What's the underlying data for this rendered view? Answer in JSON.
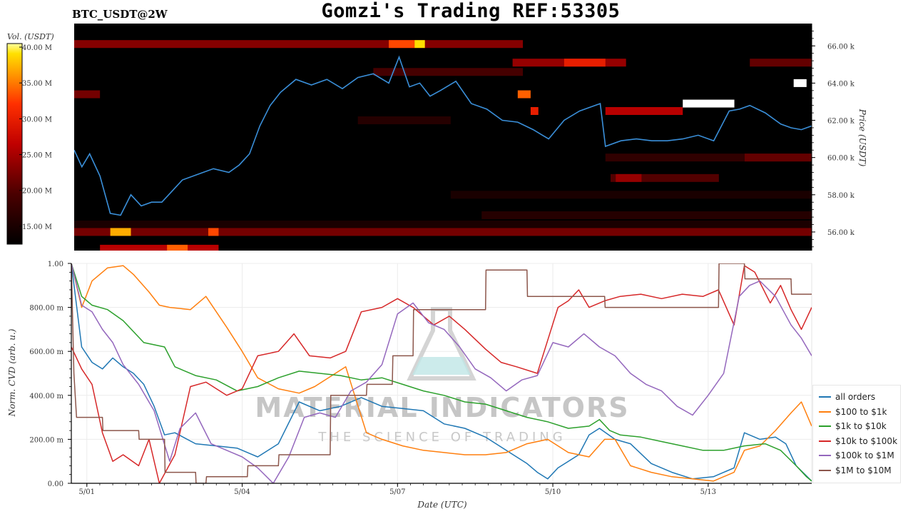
{
  "header": {
    "title": "Gomzi's Trading REF:53305",
    "symbol": "BTC_USDT@2W"
  },
  "watermark": {
    "brand": "MATERIAL INDICATORS",
    "tagline": "THE SCIENCE OF TRADING"
  },
  "colors": {
    "all_orders": "#1f77b4",
    "usd100_1k": "#ff7f0e",
    "usd1k_10k": "#2ca02c",
    "usd10k_100k": "#d62728",
    "usd100k_1m": "#9467bd",
    "usd1m_10m": "#8c564b",
    "price_line": "#3a8fd9",
    "heatmap_bg": "#000000"
  },
  "chart_data": [
    {
      "type": "heatmap",
      "colorbar": {
        "label": "Vol. (USDT)",
        "ticks": [
          "40.00 M",
          "35.00 M",
          "30.00 M",
          "25.00 M",
          "20.00 M",
          "15.00 M"
        ],
        "range": [
          12.5,
          40.5
        ]
      },
      "ylabel": "Price (USDT)",
      "ytick_labels": [
        "66.00 k",
        "64.00 k",
        "62.00 k",
        "60.00 k",
        "58.00 k",
        "56.00 k"
      ],
      "ylim": [
        55,
        67.2
      ],
      "xlim": [
        0,
        14.3
      ],
      "price_series": {
        "x": [
          0,
          0.15,
          0.3,
          0.5,
          0.7,
          0.9,
          1.1,
          1.3,
          1.5,
          1.7,
          1.9,
          2.1,
          2.4,
          2.7,
          3.0,
          3.2,
          3.4,
          3.6,
          3.8,
          4.0,
          4.3,
          4.6,
          4.9,
          5.2,
          5.5,
          5.8,
          6.1,
          6.3,
          6.5,
          6.7,
          6.9,
          7.1,
          7.4,
          7.7,
          8.0,
          8.3,
          8.6,
          8.9,
          9.2,
          9.5,
          9.8,
          10.0,
          10.2,
          10.3,
          10.6,
          10.9,
          11.2,
          11.5,
          11.8,
          12.1,
          12.4,
          12.7,
          12.9,
          13.1,
          13.4,
          13.7,
          13.9,
          14.1,
          14.3
        ],
        "y": [
          60.4,
          59.5,
          60.2,
          59.0,
          57.0,
          56.9,
          58.0,
          57.4,
          57.6,
          57.6,
          58.2,
          58.8,
          59.1,
          59.4,
          59.2,
          59.6,
          60.2,
          61.7,
          62.8,
          63.5,
          64.2,
          63.9,
          64.2,
          63.7,
          64.3,
          64.5,
          64.0,
          65.4,
          63.8,
          64.0,
          63.3,
          63.6,
          64.1,
          62.9,
          62.6,
          62.0,
          61.9,
          61.5,
          61.0,
          62.0,
          62.5,
          62.7,
          62.9,
          60.6,
          60.9,
          61.0,
          60.9,
          60.9,
          61.0,
          61.2,
          60.9,
          62.5,
          62.6,
          62.8,
          62.4,
          61.8,
          61.6,
          61.5,
          61.7
        ]
      },
      "bands": [
        {
          "price": 66.1,
          "x0": 0.0,
          "x1": 8.7,
          "vol": 23
        },
        {
          "price": 66.1,
          "x0": 6.1,
          "x1": 6.6,
          "vol": 33
        },
        {
          "price": 66.1,
          "x0": 6.6,
          "x1": 6.8,
          "vol": 39
        },
        {
          "price": 65.1,
          "x0": 8.5,
          "x1": 10.7,
          "vol": 24
        },
        {
          "price": 65.1,
          "x0": 9.5,
          "x1": 10.3,
          "vol": 30
        },
        {
          "price": 65.1,
          "x0": 13.1,
          "x1": 14.3,
          "vol": 21
        },
        {
          "price": 64.6,
          "x0": 5.8,
          "x1": 8.7,
          "vol": 19
        },
        {
          "price": 63.4,
          "x0": 0.0,
          "x1": 0.5,
          "vol": 22
        },
        {
          "price": 63.4,
          "x0": 8.6,
          "x1": 8.85,
          "vol": 34
        },
        {
          "price": 62.5,
          "x0": 8.85,
          "x1": 9.0,
          "vol": 30
        },
        {
          "price": 62.5,
          "x0": 10.3,
          "x1": 11.8,
          "vol": 26
        },
        {
          "price": 62.9,
          "x0": 11.8,
          "x1": 12.8,
          "vol": 42
        },
        {
          "price": 64.0,
          "x0": 13.95,
          "x1": 14.2,
          "vol": 42
        },
        {
          "price": 62.0,
          "x0": 5.5,
          "x1": 7.3,
          "vol": 16
        },
        {
          "price": 60.0,
          "x0": 10.3,
          "x1": 14.3,
          "vol": 17
        },
        {
          "price": 60.0,
          "x0": 13.0,
          "x1": 14.3,
          "vol": 21
        },
        {
          "price": 58.9,
          "x0": 10.4,
          "x1": 12.5,
          "vol": 20
        },
        {
          "price": 58.9,
          "x0": 10.5,
          "x1": 11.0,
          "vol": 24
        },
        {
          "price": 58.0,
          "x0": 7.3,
          "x1": 14.3,
          "vol": 15
        },
        {
          "price": 56.9,
          "x0": 7.9,
          "x1": 14.3,
          "vol": 16
        },
        {
          "price": 56.4,
          "x0": 0.0,
          "x1": 14.3,
          "vol": 15
        },
        {
          "price": 56.0,
          "x0": 0.0,
          "x1": 14.3,
          "vol": 22
        },
        {
          "price": 56.0,
          "x0": 0.7,
          "x1": 1.1,
          "vol": 37
        },
        {
          "price": 56.0,
          "x0": 2.6,
          "x1": 2.8,
          "vol": 33
        },
        {
          "price": 55.1,
          "x0": 0.5,
          "x1": 2.8,
          "vol": 26
        },
        {
          "price": 55.1,
          "x0": 1.8,
          "x1": 2.2,
          "vol": 34
        }
      ]
    },
    {
      "type": "line",
      "xlabel": "Date (UTC)",
      "ylabel": "Norm. CVD (arb. u.)",
      "x_tick_labels": [
        "5/01",
        "5/04",
        "5/07",
        "5/10",
        "5/13"
      ],
      "x_tick_positions": [
        0.3,
        3.3,
        6.3,
        9.3,
        12.3
      ],
      "xlim": [
        0,
        14.3
      ],
      "y_tick_labels": [
        "1.00",
        "800.00 m",
        "600.00 m",
        "400.00 m",
        "200.00 m",
        "0.00"
      ],
      "ylim": [
        0,
        1
      ],
      "legend_position": "bottom-right",
      "series": [
        {
          "name": "all orders",
          "x": [
            0,
            0.2,
            0.4,
            0.6,
            0.8,
            1.0,
            1.2,
            1.4,
            1.6,
            1.8,
            2.0,
            2.4,
            2.8,
            3.2,
            3.6,
            4.0,
            4.4,
            4.8,
            5.2,
            5.6,
            6.0,
            6.4,
            6.8,
            7.2,
            7.6,
            8.0,
            8.4,
            8.8,
            9.0,
            9.2,
            9.4,
            9.6,
            9.8,
            10.0,
            10.2,
            10.5,
            10.8,
            11.2,
            11.6,
            12.0,
            12.4,
            12.8,
            13.0,
            13.3,
            13.6,
            13.8,
            14.0,
            14.3
          ],
          "y": [
            1.0,
            0.62,
            0.55,
            0.52,
            0.57,
            0.53,
            0.5,
            0.45,
            0.35,
            0.22,
            0.23,
            0.18,
            0.17,
            0.16,
            0.12,
            0.18,
            0.37,
            0.33,
            0.35,
            0.39,
            0.35,
            0.34,
            0.33,
            0.27,
            0.25,
            0.21,
            0.15,
            0.09,
            0.05,
            0.02,
            0.07,
            0.1,
            0.13,
            0.22,
            0.25,
            0.2,
            0.18,
            0.09,
            0.05,
            0.02,
            0.03,
            0.07,
            0.23,
            0.2,
            0.21,
            0.18,
            0.08,
            0.01
          ]
        },
        {
          "name": "$100 to $1k",
          "x": [
            0,
            0.2,
            0.4,
            0.7,
            1.0,
            1.2,
            1.5,
            1.7,
            1.9,
            2.3,
            2.6,
            3.0,
            3.3,
            3.6,
            4.0,
            4.4,
            4.7,
            4.9,
            5.1,
            5.3,
            5.7,
            6.0,
            6.4,
            6.8,
            7.2,
            7.6,
            8.0,
            8.4,
            8.8,
            9.2,
            9.6,
            10.0,
            10.3,
            10.5,
            10.8,
            11.2,
            11.6,
            12.0,
            12.4,
            12.8,
            13.0,
            13.3,
            13.6,
            13.9,
            14.1,
            14.3
          ],
          "y": [
            1.0,
            0.8,
            0.92,
            0.98,
            0.99,
            0.95,
            0.87,
            0.81,
            0.8,
            0.79,
            0.85,
            0.71,
            0.6,
            0.48,
            0.43,
            0.41,
            0.44,
            0.47,
            0.5,
            0.53,
            0.23,
            0.2,
            0.17,
            0.15,
            0.14,
            0.13,
            0.13,
            0.14,
            0.18,
            0.2,
            0.14,
            0.12,
            0.2,
            0.2,
            0.08,
            0.05,
            0.03,
            0.02,
            0.01,
            0.05,
            0.15,
            0.17,
            0.24,
            0.32,
            0.37,
            0.26
          ]
        },
        {
          "name": "$1k to $10k",
          "x": [
            0,
            0.2,
            0.4,
            0.7,
            1.0,
            1.4,
            1.8,
            2.0,
            2.4,
            2.8,
            3.2,
            3.6,
            4.0,
            4.4,
            4.8,
            5.2,
            5.6,
            6.0,
            6.4,
            6.8,
            7.2,
            7.6,
            8.0,
            8.4,
            8.8,
            9.2,
            9.6,
            10.0,
            10.2,
            10.4,
            10.6,
            11.0,
            11.4,
            11.8,
            12.2,
            12.6,
            13.0,
            13.4,
            13.7,
            14.0,
            14.2,
            14.3
          ],
          "y": [
            1.0,
            0.85,
            0.81,
            0.79,
            0.74,
            0.64,
            0.62,
            0.53,
            0.49,
            0.47,
            0.42,
            0.44,
            0.48,
            0.51,
            0.5,
            0.49,
            0.47,
            0.48,
            0.45,
            0.42,
            0.4,
            0.37,
            0.36,
            0.33,
            0.3,
            0.28,
            0.25,
            0.26,
            0.29,
            0.24,
            0.22,
            0.21,
            0.19,
            0.17,
            0.15,
            0.15,
            0.17,
            0.18,
            0.15,
            0.08,
            0.03,
            0.01
          ]
        },
        {
          "name": "$10k to $100k",
          "x": [
            0,
            0.2,
            0.4,
            0.6,
            0.8,
            1.0,
            1.3,
            1.5,
            1.7,
            2.0,
            2.3,
            2.6,
            3.0,
            3.3,
            3.6,
            4.0,
            4.3,
            4.6,
            5.0,
            5.3,
            5.6,
            6.0,
            6.3,
            6.6,
            7.0,
            7.3,
            7.6,
            8.0,
            8.3,
            8.6,
            9.0,
            9.2,
            9.4,
            9.6,
            9.8,
            10.0,
            10.3,
            10.6,
            11.0,
            11.4,
            11.8,
            12.2,
            12.5,
            12.8,
            13.0,
            13.2,
            13.5,
            13.7,
            13.9,
            14.1,
            14.3
          ],
          "y": [
            0.62,
            0.52,
            0.45,
            0.23,
            0.1,
            0.13,
            0.08,
            0.2,
            0.0,
            0.13,
            0.44,
            0.46,
            0.4,
            0.43,
            0.58,
            0.6,
            0.68,
            0.58,
            0.57,
            0.6,
            0.78,
            0.8,
            0.84,
            0.8,
            0.72,
            0.76,
            0.7,
            0.61,
            0.55,
            0.53,
            0.5,
            0.65,
            0.8,
            0.83,
            0.88,
            0.8,
            0.83,
            0.85,
            0.86,
            0.84,
            0.86,
            0.85,
            0.88,
            0.72,
            0.99,
            0.96,
            0.82,
            0.9,
            0.79,
            0.7,
            0.8
          ]
        },
        {
          "name": "$100k to $1M",
          "x": [
            0,
            0.2,
            0.4,
            0.6,
            0.8,
            1.0,
            1.3,
            1.6,
            1.9,
            2.1,
            2.4,
            2.7,
            3.0,
            3.3,
            3.6,
            3.9,
            4.2,
            4.5,
            4.8,
            5.1,
            5.4,
            5.7,
            6.0,
            6.3,
            6.6,
            6.9,
            7.2,
            7.5,
            7.8,
            8.1,
            8.4,
            8.7,
            9.0,
            9.3,
            9.6,
            9.9,
            10.2,
            10.5,
            10.8,
            11.1,
            11.4,
            11.7,
            12.0,
            12.3,
            12.6,
            12.9,
            13.1,
            13.3,
            13.6,
            13.9,
            14.1,
            14.3
          ],
          "y": [
            1.0,
            0.81,
            0.78,
            0.7,
            0.64,
            0.54,
            0.45,
            0.33,
            0.1,
            0.25,
            0.32,
            0.18,
            0.15,
            0.12,
            0.07,
            0.0,
            0.12,
            0.3,
            0.32,
            0.3,
            0.42,
            0.46,
            0.54,
            0.77,
            0.82,
            0.73,
            0.7,
            0.62,
            0.52,
            0.48,
            0.42,
            0.47,
            0.49,
            0.64,
            0.62,
            0.68,
            0.62,
            0.58,
            0.5,
            0.45,
            0.42,
            0.35,
            0.31,
            0.4,
            0.5,
            0.85,
            0.9,
            0.92,
            0.85,
            0.72,
            0.66,
            0.58
          ]
        },
        {
          "name": "$1M to $10M",
          "x": [
            0,
            0.05,
            0.1,
            0.6,
            0.61,
            1.3,
            1.31,
            1.8,
            1.81,
            2.4,
            2.41,
            2.6,
            2.61,
            3.4,
            3.41,
            4.0,
            4.01,
            5.0,
            5.01,
            5.7,
            5.71,
            6.2,
            6.21,
            6.6,
            6.61,
            7.2,
            7.21,
            8.0,
            8.01,
            8.8,
            8.81,
            9.0,
            9.01,
            10.3,
            10.31,
            10.8,
            10.81,
            12.2,
            12.21,
            12.5,
            12.51,
            13.0,
            13.01,
            13.4,
            13.41,
            13.9,
            13.91,
            14.3
          ],
          "y": [
            1.0,
            0.5,
            0.3,
            0.3,
            0.24,
            0.24,
            0.2,
            0.2,
            0.05,
            0.05,
            0.0,
            0.0,
            0.03,
            0.03,
            0.08,
            0.08,
            0.13,
            0.13,
            0.4,
            0.4,
            0.45,
            0.45,
            0.58,
            0.58,
            0.79,
            0.79,
            0.79,
            0.79,
            0.97,
            0.97,
            0.85,
            0.85,
            0.85,
            0.85,
            0.8,
            0.8,
            0.8,
            0.8,
            0.8,
            0.8,
            1.0,
            1.0,
            0.93,
            0.93,
            0.93,
            0.93,
            0.86,
            0.86
          ]
        }
      ]
    }
  ]
}
